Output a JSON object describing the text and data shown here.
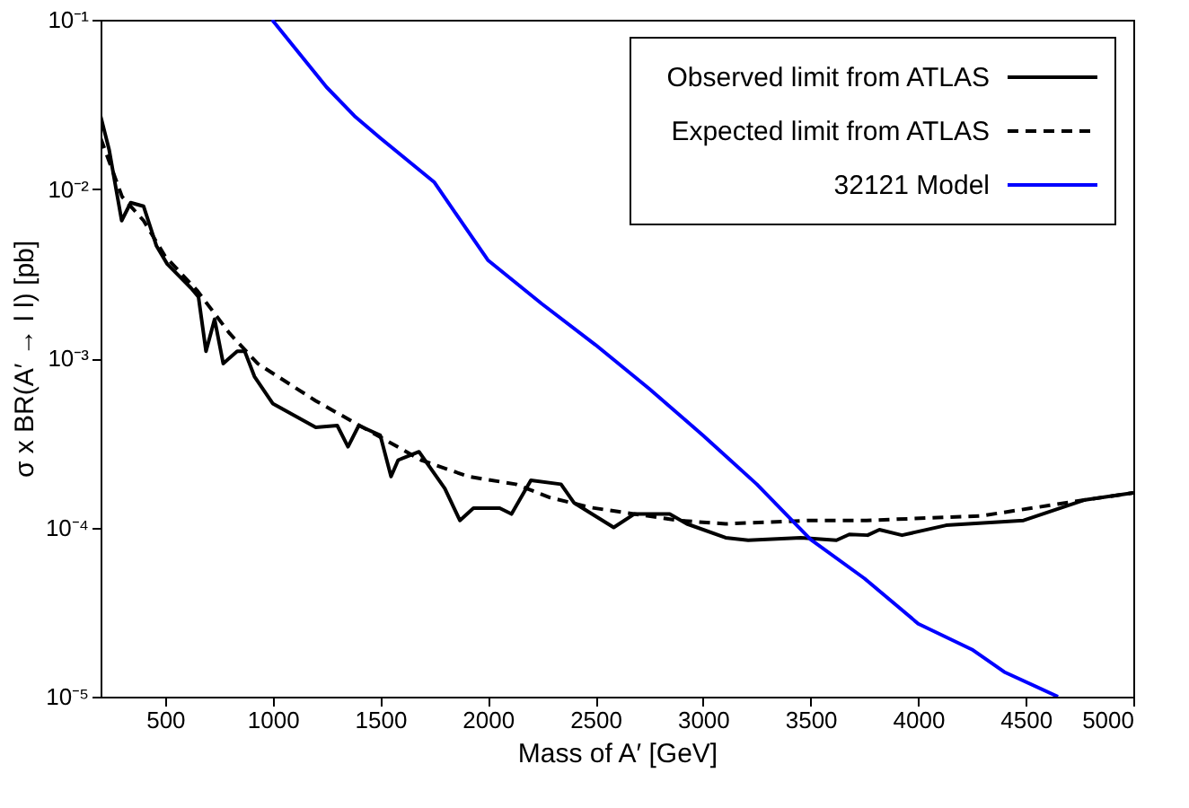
{
  "chart_data": {
    "type": "line",
    "xlabel": "Mass of A′ [GeV]",
    "ylabel": "σ x BR(A′ → l l) [pb]",
    "log": true,
    "grid": false,
    "legend": "top right",
    "xlim": [
      200,
      5000
    ],
    "xticks": [
      500,
      1000,
      1500,
      2000,
      2500,
      3000,
      3500,
      4000,
      4500,
      5000
    ],
    "ylim": [
      1e-05,
      0.1
    ],
    "yticks": [
      {
        "value": 1e-05,
        "label": "10⁻⁵"
      },
      {
        "value": 0.0001,
        "label": "10⁻⁴"
      },
      {
        "value": 0.001,
        "label": "10⁻³"
      },
      {
        "value": 0.01,
        "label": "10⁻²"
      },
      {
        "value": 0.1,
        "label": "10⁻¹"
      }
    ],
    "series": [
      {
        "name": "Observed limit from ATLAS",
        "color": "#000000",
        "line_style": "solid",
        "x": [
          200,
          240,
          298,
          340,
          400,
          460,
          510,
          620,
          655,
          690,
          730,
          770,
          835,
          870,
          915,
          1000,
          1200,
          1300,
          1350,
          1400,
          1500,
          1550,
          1583,
          1680,
          1800,
          1870,
          1933,
          2055,
          2110,
          2200,
          2340,
          2400,
          2585,
          2680,
          2845,
          2925,
          3105,
          3210,
          3455,
          3620,
          3680,
          3765,
          3820,
          3925,
          4130,
          4490,
          4770,
          5000
        ],
        "values": [
          0.027,
          0.017,
          0.0065,
          0.0083,
          0.0079,
          0.0046,
          0.0036,
          0.0026,
          0.0023,
          0.0011,
          0.0017,
          0.00093,
          0.0011,
          0.0011,
          0.00078,
          0.00054,
          0.00039,
          0.0004,
          0.0003,
          0.0004,
          0.00035,
          0.0002,
          0.00025,
          0.00028,
          0.00017,
          0.00011,
          0.00013,
          0.00013,
          0.00012,
          0.00019,
          0.00018,
          0.00014,
          0.0001,
          0.00012,
          0.00012,
          0.000105,
          8.7e-05,
          8.4e-05,
          8.7e-05,
          8.4e-05,
          9.1e-05,
          9e-05,
          9.7e-05,
          9e-05,
          0.000103,
          0.00011,
          0.000145,
          0.00016
        ]
      },
      {
        "name": "Expected limit from ATLAS",
        "color": "#000000",
        "line_style": "dashed",
        "x": [
          200,
          300,
          400,
          500,
          650,
          800,
          930,
          1200,
          1690,
          1910,
          2130,
          2290,
          2480,
          2885,
          3105,
          3500,
          3760,
          4290,
          4770,
          5000
        ],
        "values": [
          0.02,
          0.009,
          0.0065,
          0.004,
          0.0025,
          0.0014,
          0.00093,
          0.00056,
          0.00025,
          0.0002,
          0.00018,
          0.00015,
          0.000131,
          0.00011,
          0.000105,
          0.00011,
          0.00011,
          0.000117,
          0.000145,
          0.00016
        ]
      },
      {
        "name": "32121 Model",
        "color": "#0000ff",
        "line_style": "solid",
        "x": [
          997,
          1250,
          1380,
          1500,
          1750,
          2000,
          2250,
          2500,
          2750,
          3000,
          3250,
          3500,
          3750,
          4000,
          4250,
          4400,
          4650
        ],
        "values": [
          0.1,
          0.04,
          0.027,
          0.02,
          0.011,
          0.0038,
          0.0021,
          0.0012,
          0.00066,
          0.00035,
          0.00018,
          8.5e-05,
          5e-05,
          2.7e-05,
          1.9e-05,
          1.4e-05,
          1e-05
        ]
      }
    ]
  }
}
